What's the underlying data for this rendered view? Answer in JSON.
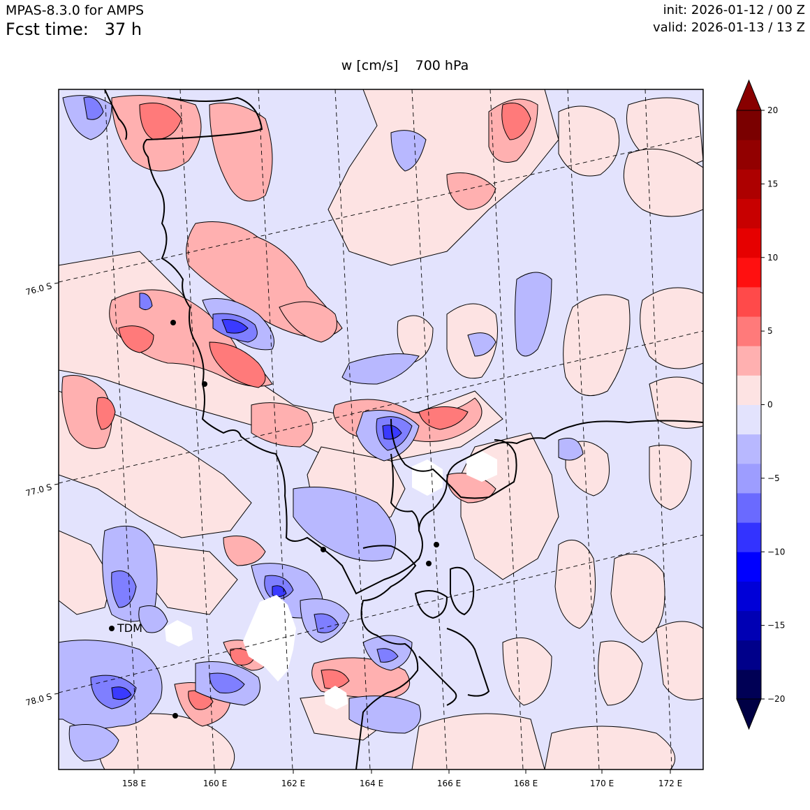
{
  "header": {
    "model": "MPAS-8.3.0 for AMPS",
    "fcst_label": "Fcst time:",
    "fcst_value": "37 h",
    "init": "init: 2026-01-12 / 00 Z",
    "valid": "valid: 2026-01-13 / 13 Z"
  },
  "plot": {
    "variable": "w [cm/s]",
    "level": "700 hPa"
  },
  "map": {
    "lon_labels": [
      "158 E",
      "160 E",
      "162 E",
      "164 E",
      "166 E",
      "168 E",
      "170 E",
      "172 E"
    ],
    "lat_labels": [
      "76.0 S",
      "77.0 S",
      "78.0 S"
    ],
    "station_label": "TDM"
  },
  "colorbar": {
    "tick_labels": [
      "20",
      "15",
      "10",
      "5",
      "0",
      "−5",
      "−10",
      "−15",
      "−20"
    ],
    "colors": [
      "#000055",
      "#00008a",
      "#0000b4",
      "#0000d8",
      "#0000ff",
      "#3333ff",
      "#6a6aff",
      "#9d9dff",
      "#b8b8ff",
      "#e3e3fd",
      "#fde3e3",
      "#ffb0b0",
      "#ff7a7a",
      "#ff4a4a",
      "#ff1010",
      "#e60000",
      "#c80000",
      "#ad0000",
      "#920000",
      "#7a0000"
    ],
    "extend_min_color": "#000044",
    "extend_max_color": "#880000"
  },
  "field_colors": {
    "background": "#e3e3fd",
    "positive_weak": "#fde3e3",
    "positive_mid": "#ffb0b0",
    "positive_strong": "#ff7a7a",
    "negative_weak": "#b8b8ff",
    "negative_mid": "#7f7fff",
    "negative_strong": "#3a3aff",
    "coastline": "#000000"
  }
}
